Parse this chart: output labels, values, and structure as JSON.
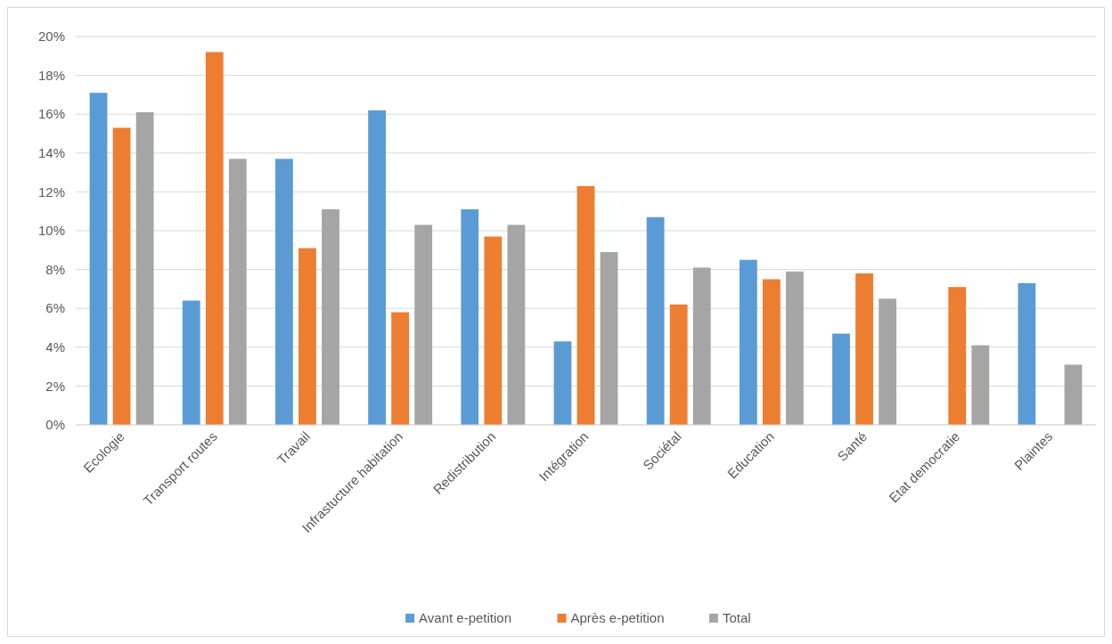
{
  "chart_data": {
    "type": "bar",
    "categories": [
      "Ecologie",
      "Transport routes",
      "Travail",
      "Infrastucture habitation",
      "Redistribution",
      "Intégration",
      "Sociétal",
      "Education",
      "Santé",
      "Etat democratie",
      "Plaintes"
    ],
    "series": [
      {
        "name": "Avant e-petition",
        "color": "#5b9bd5",
        "values": [
          17.1,
          6.4,
          13.7,
          16.2,
          11.1,
          4.3,
          10.7,
          8.5,
          4.7,
          null,
          7.3
        ]
      },
      {
        "name": "Après e-petition",
        "color": "#ed7d31",
        "values": [
          15.3,
          19.2,
          9.1,
          5.8,
          9.7,
          12.3,
          6.2,
          7.5,
          7.8,
          7.1,
          null
        ]
      },
      {
        "name": "Total",
        "color": "#a5a5a5",
        "values": [
          16.1,
          13.7,
          11.1,
          10.3,
          10.3,
          8.9,
          8.1,
          7.9,
          6.5,
          4.1,
          3.1
        ]
      }
    ],
    "ylim": [
      0,
      20
    ],
    "yticks": [
      {
        "value": 0,
        "label": "0%"
      },
      {
        "value": 2,
        "label": "2%"
      },
      {
        "value": 4,
        "label": "4%"
      },
      {
        "value": 6,
        "label": "6%"
      },
      {
        "value": 8,
        "label": "8%"
      },
      {
        "value": 10,
        "label": "10%"
      },
      {
        "value": 12,
        "label": "12%"
      },
      {
        "value": 14,
        "label": "14%"
      },
      {
        "value": 16,
        "label": "16%"
      },
      {
        "value": 18,
        "label": "18%"
      },
      {
        "value": 20,
        "label": "20%"
      }
    ],
    "grid": "y",
    "legend": "bottom"
  }
}
